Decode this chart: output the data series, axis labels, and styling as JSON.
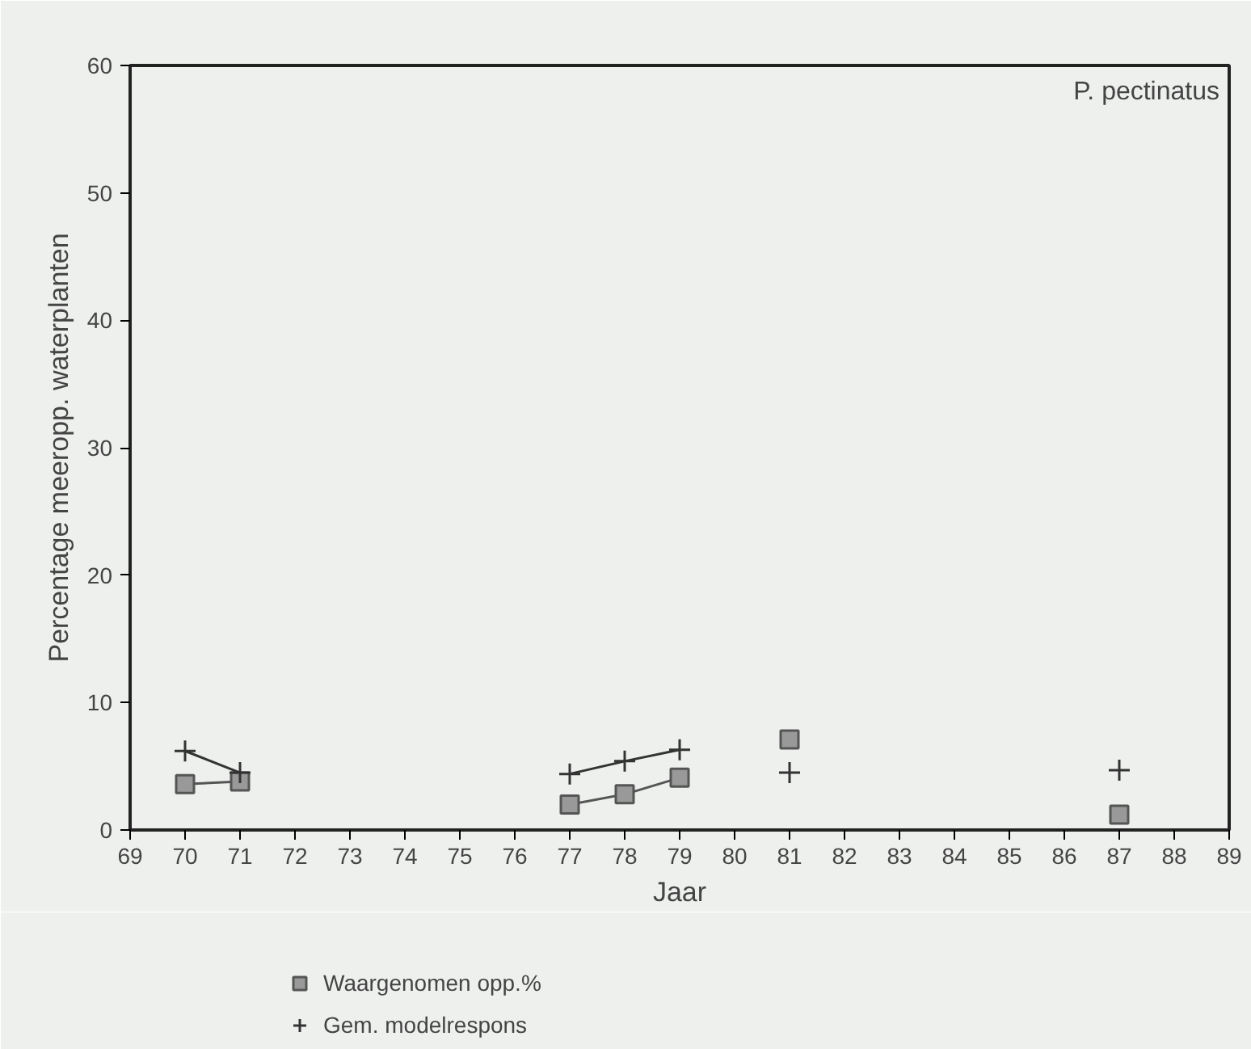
{
  "chart_data": {
    "type": "line",
    "xlabel": "Jaar",
    "ylabel": "Percentage meeropp. waterplanten",
    "annotations": [
      "P. pectinatus"
    ],
    "x": [
      70,
      71,
      72,
      73,
      74,
      75,
      76,
      77,
      78,
      79,
      80,
      81,
      82,
      83,
      84,
      85,
      86,
      87
    ],
    "series": [
      {
        "name": "Waargenomen opp.%",
        "color": "#555555",
        "marker": "square",
        "values": [
          3.6,
          3.8,
          null,
          null,
          null,
          null,
          null,
          2.0,
          2.8,
          4.1,
          null,
          7.1,
          null,
          null,
          null,
          null,
          null,
          1.2
        ]
      },
      {
        "name": "Gem. modelrespons",
        "color": "#333333",
        "marker": "cross",
        "values": [
          6.2,
          4.5,
          null,
          null,
          null,
          null,
          null,
          4.4,
          5.4,
          6.3,
          null,
          4.5,
          null,
          null,
          null,
          null,
          null,
          4.7
        ]
      }
    ],
    "xlim": [
      69,
      89
    ],
    "xticks": [
      69,
      70,
      71,
      72,
      73,
      74,
      75,
      76,
      77,
      78,
      79,
      80,
      81,
      82,
      83,
      84,
      85,
      86,
      87,
      88,
      89
    ],
    "ylim": [
      0,
      60
    ],
    "yticks": [
      0,
      10,
      20,
      30,
      40,
      50,
      60
    ],
    "grid": false,
    "legend": "bottom left",
    "line_style": "solid"
  }
}
